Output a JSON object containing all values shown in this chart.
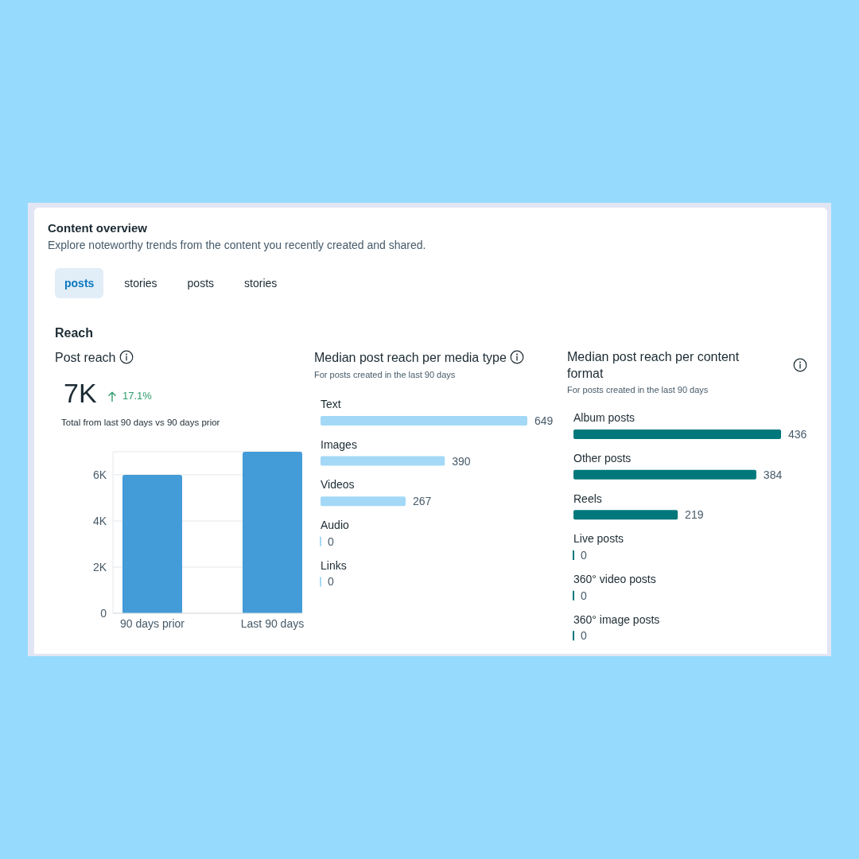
{
  "chart_data": [
    {
      "type": "other",
      "title": "Content overview",
      "subtitle": "Explore noteworthy trends from the content you recently created and shared.",
      "annotations": [
        "posts",
        "stories",
        "posts",
        "stories",
        "Reach"
      ]
    },
    {
      "type": "bar",
      "title": "Post reach",
      "annotations": [
        "7K",
        "17.1%",
        "Total from last 90 days vs 90 days prior"
      ],
      "categories": [
        "90 days prior",
        "Last 90 days"
      ],
      "values": [
        6000,
        7000
      ],
      "color": "#439bd7",
      "ylim": [
        0,
        7000
      ],
      "yticks": [
        0,
        {
          "value": 2000,
          "label": "2K"
        },
        {
          "value": 4000,
          "label": "4K"
        },
        {
          "value": 6000,
          "label": "6K"
        }
      ],
      "grid": "y"
    },
    {
      "type": "bar",
      "orientation": "horizontal",
      "title": "Median post reach per media type",
      "subtitle": "For posts created in the last 90 days",
      "categories": [
        "Text",
        "Images",
        "Videos",
        "Audio",
        "Links"
      ],
      "values": [
        649,
        390,
        267,
        0,
        0
      ],
      "color": "#a3d9f6",
      "data_labels": true
    },
    {
      "type": "bar",
      "orientation": "horizontal",
      "title": "Median post reach per content format",
      "subtitle": "For posts created in the last 90 days",
      "categories": [
        "Album posts",
        "Other posts",
        "Reels",
        "Live posts",
        "360° video posts",
        "360° image posts"
      ],
      "values": [
        436,
        384,
        219,
        0,
        0,
        0
      ],
      "color": "#00787b",
      "data_labels": true
    }
  ]
}
